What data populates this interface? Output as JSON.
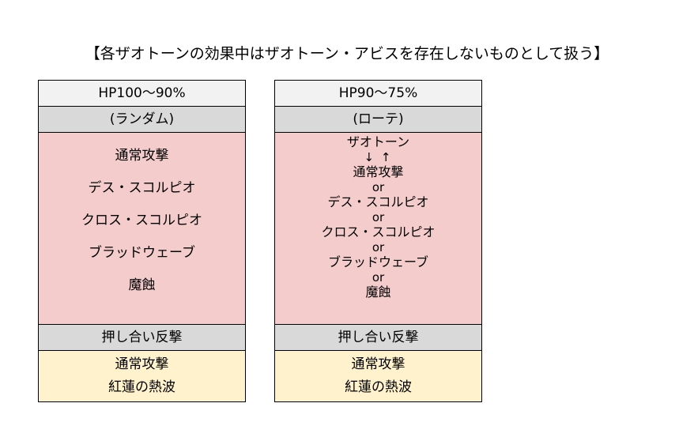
{
  "heading": "【各ザオトーンの効果中はザオトーン・アビスを存在しないものとして扱う】",
  "columns": [
    {
      "hp": "HP100〜90%",
      "mode": "(ランダム)",
      "main_items": [
        "通常攻撃",
        "デス・スコルピオ",
        "クロス・スコルピオ",
        "ブラッドウェーブ",
        "魔蝕"
      ],
      "counter": "押し合い反撃",
      "bottom_items": [
        "通常攻撃",
        "紅蓮の熱波"
      ]
    },
    {
      "hp": "HP90〜75%",
      "mode": "(ローテ)",
      "rotation": {
        "first": "ザオトーン",
        "arrows": "↓ ↑",
        "items": [
          "通常攻撃",
          "デス・スコルピオ",
          "クロス・スコルピオ",
          "ブラッドウェーブ",
          "魔蝕"
        ],
        "separator": "or"
      },
      "counter": "押し合い反撃",
      "bottom_items": [
        "通常攻撃",
        "紅蓮の熱波"
      ]
    }
  ]
}
